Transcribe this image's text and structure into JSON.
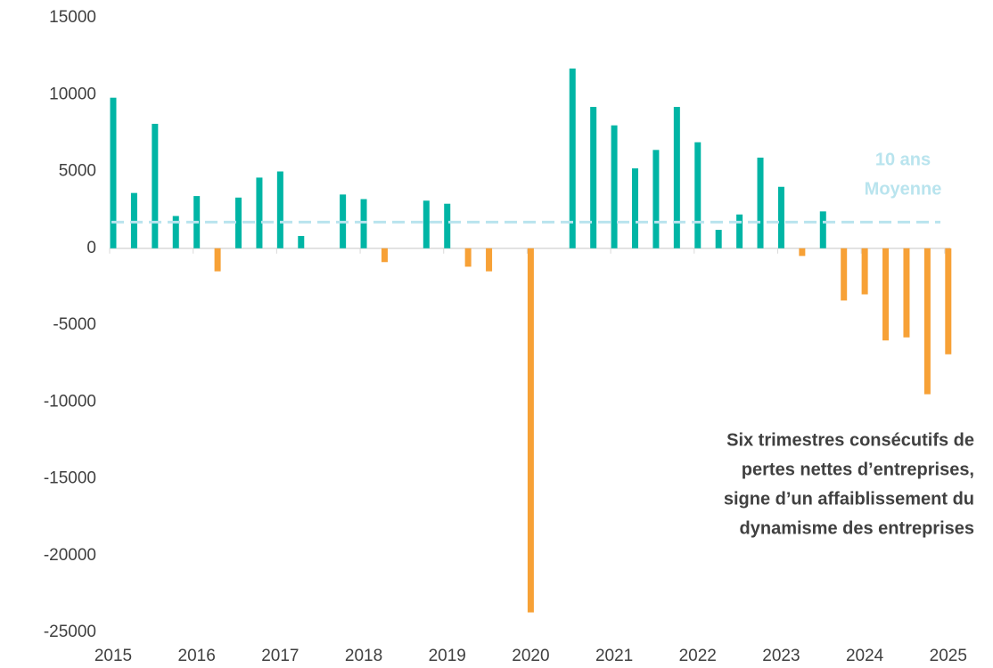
{
  "chart_data": {
    "type": "bar",
    "categories": [
      "2015",
      null,
      null,
      null,
      "2016",
      null,
      null,
      null,
      "2017",
      null,
      null,
      null,
      "2018",
      null,
      null,
      null,
      "2019",
      null,
      null,
      null,
      "2020",
      null,
      null,
      null,
      "2021",
      null,
      null,
      null,
      "2022",
      null,
      null,
      null,
      "2023",
      null,
      null,
      null,
      "2024",
      null,
      null,
      null,
      "2025"
    ],
    "values": [
      9800,
      3600,
      8100,
      2100,
      3400,
      -1500,
      3300,
      4600,
      5000,
      800,
      0,
      3500,
      3200,
      -900,
      0,
      3100,
      2900,
      -1200,
      -1500,
      0,
      -23700,
      0,
      11700,
      9200,
      8000,
      5200,
      6400,
      9200,
      6900,
      1200,
      2200,
      5900,
      4000,
      -500,
      2400,
      -3400,
      -3000,
      -6000,
      -5800,
      -9500,
      -6900
    ],
    "positive_color": "#00b5a5",
    "negative_color": "#f7a136",
    "ylim": [
      -25000,
      15000
    ],
    "yticks": [
      -25000,
      -20000,
      -15000,
      -10000,
      -5000,
      0,
      5000,
      10000,
      15000
    ],
    "average": {
      "label": [
        "10 ans",
        "Moyenne"
      ],
      "value": 1700,
      "color": "#b9e4ee"
    },
    "annotation": [
      "Six trimestres consécutifs de",
      "pertes nettes d’entreprises,",
      "signe d’un affaiblissement du",
      "dynamisme des entreprises"
    ]
  }
}
